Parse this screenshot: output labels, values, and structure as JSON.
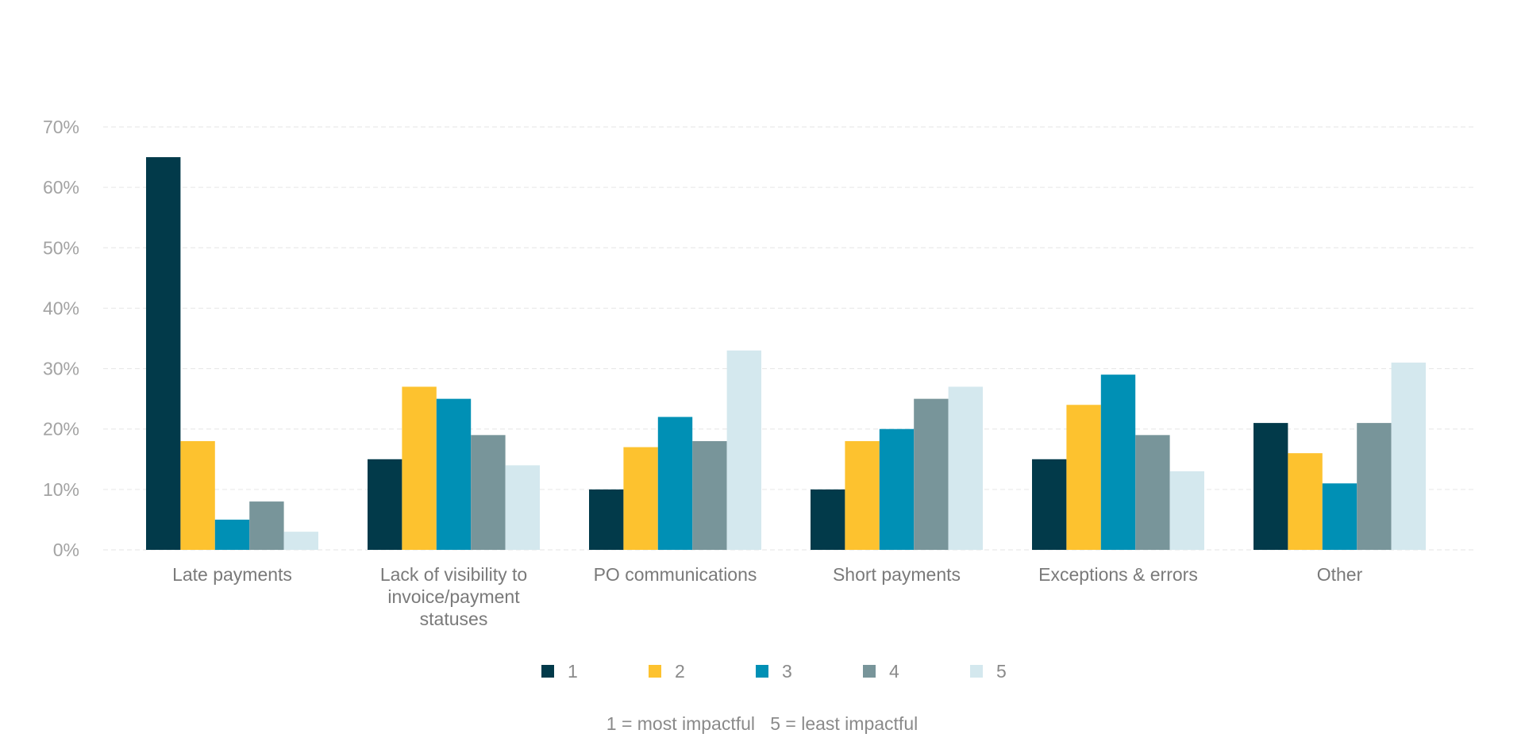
{
  "chart_data": {
    "type": "bar",
    "title": "",
    "xlabel": "",
    "ylabel": "",
    "ylim": [
      0,
      70
    ],
    "yticks": [
      "0%",
      "10%",
      "20%",
      "30%",
      "40%",
      "50%",
      "60%",
      "70%"
    ],
    "grid": true,
    "categories": [
      [
        "Late payments"
      ],
      [
        "Lack of visibility to",
        "invoice/payment",
        "statuses"
      ],
      [
        "PO communications"
      ],
      [
        "Short payments"
      ],
      [
        "Exceptions & errors"
      ],
      [
        "Other"
      ]
    ],
    "series": [
      {
        "name": "1",
        "color": "#023a4a",
        "values": [
          65,
          15,
          10,
          10,
          15,
          21
        ]
      },
      {
        "name": "2",
        "color": "#fdc22f",
        "values": [
          18,
          27,
          17,
          18,
          24,
          16
        ]
      },
      {
        "name": "3",
        "color": "#0090b5",
        "values": [
          5,
          25,
          22,
          20,
          29,
          11
        ]
      },
      {
        "name": "4",
        "color": "#78959a",
        "values": [
          8,
          19,
          18,
          25,
          19,
          21
        ]
      },
      {
        "name": "5",
        "color": "#d4e8ee",
        "values": [
          3,
          14,
          33,
          27,
          13,
          31
        ]
      }
    ],
    "legend_position": "bottom-center",
    "footnote": "1 = most impactful   5 = least impactful"
  }
}
